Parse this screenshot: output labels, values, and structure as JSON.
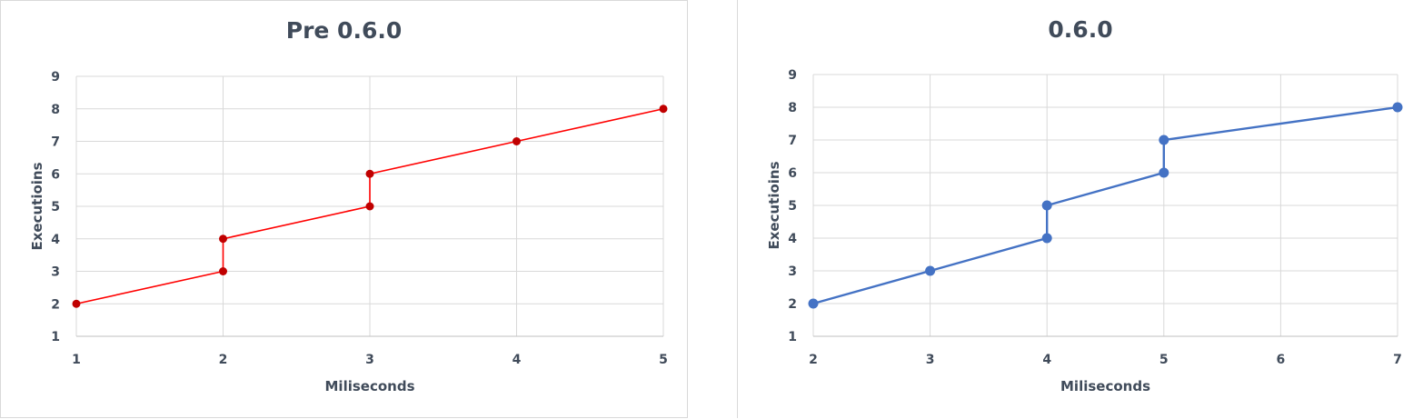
{
  "chart_data": [
    {
      "type": "line",
      "title": "Pre 0.6.0",
      "xlabel": "Miliseconds",
      "ylabel": "Executioins",
      "x_ticks": [
        1,
        2,
        3,
        4,
        5
      ],
      "y_ticks": [
        1,
        2,
        3,
        4,
        5,
        6,
        7,
        8,
        9
      ],
      "xlim": [
        1,
        5
      ],
      "ylim": [
        1,
        9
      ],
      "grid": true,
      "color": "#c00000",
      "line_color": "#ff0000",
      "series": [
        {
          "values": [
            [
              1,
              2
            ],
            [
              2,
              3
            ],
            [
              2,
              4
            ],
            [
              3,
              5
            ],
            [
              3,
              6
            ],
            [
              4,
              7
            ],
            [
              5,
              8
            ]
          ]
        }
      ]
    },
    {
      "type": "line",
      "title": "0.6.0",
      "xlabel": "Miliseconds",
      "ylabel": "Executioins",
      "x_ticks": [
        "2",
        "3",
        "4",
        "5",
        "6",
        "7"
      ],
      "y_ticks": [
        1,
        2,
        3,
        4,
        5,
        6,
        7,
        8,
        9
      ],
      "x_scale": "categorical",
      "ylim": [
        1,
        9
      ],
      "grid": true,
      "color": "#4472c4",
      "line_color": "#4472c4",
      "series": [
        {
          "values": [
            [
              2,
              2
            ],
            [
              3,
              3
            ],
            [
              4,
              4
            ],
            [
              4,
              5
            ],
            [
              5,
              6
            ],
            [
              5,
              7
            ],
            [
              7,
              8
            ]
          ]
        }
      ]
    }
  ]
}
